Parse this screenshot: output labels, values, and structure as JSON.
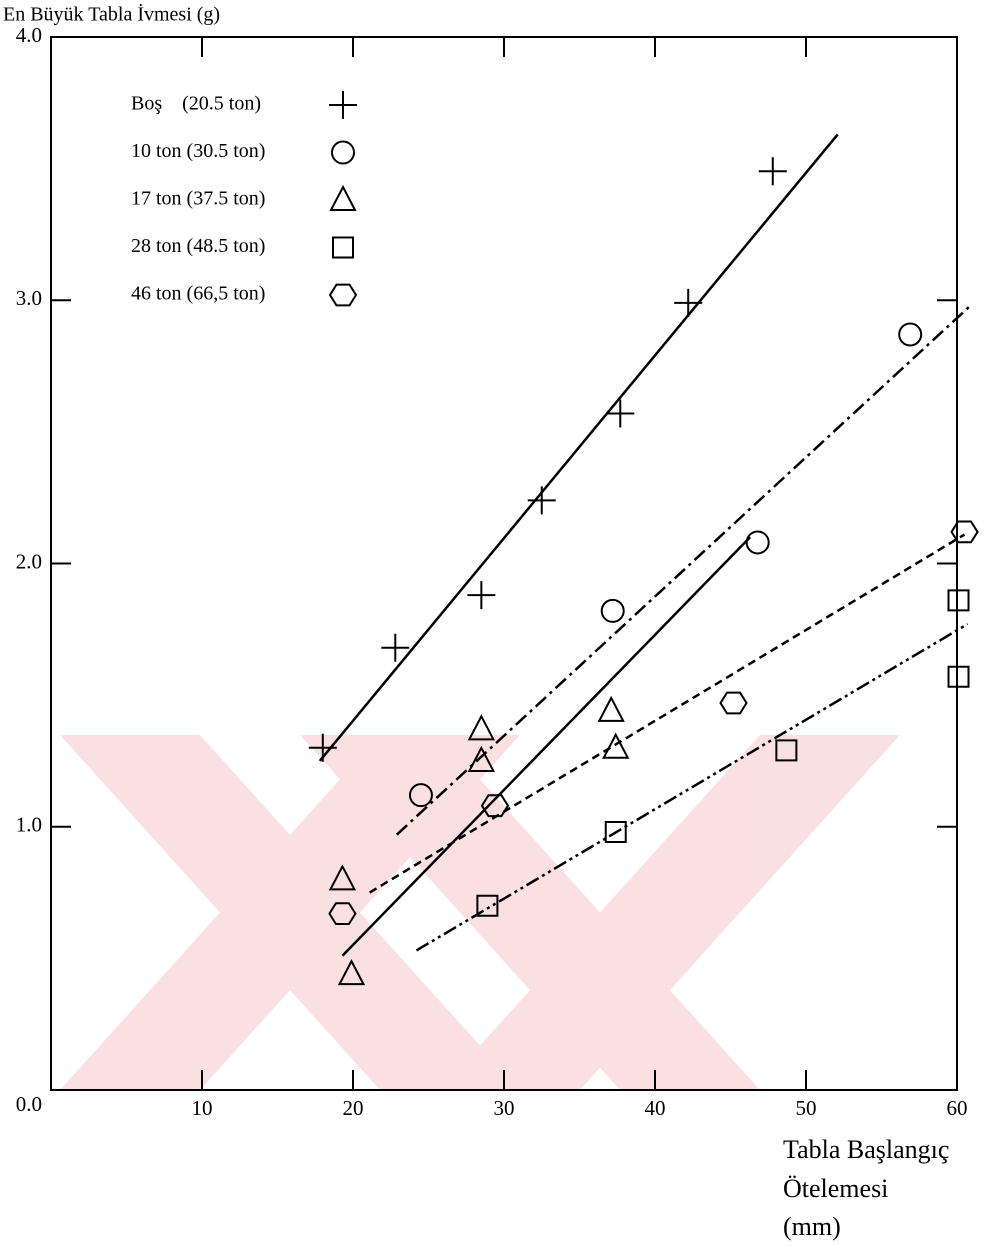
{
  "chart_data": {
    "type": "scatter",
    "ylabel": "En Büyük Tabla İvmesi (g)",
    "xlabel_lines": [
      "Tabla Başlangıç",
      "Ötelemesi",
      "(mm)"
    ],
    "xlim": [
      0,
      60
    ],
    "ylim": [
      0,
      4
    ],
    "xticks": [
      10,
      20,
      30,
      40,
      50,
      60
    ],
    "yticks": [
      {
        "value": 0,
        "label": "0.0"
      },
      {
        "value": 1,
        "label": "1.0"
      },
      {
        "value": 2,
        "label": "2.0"
      },
      {
        "value": 3,
        "label": "3.0"
      },
      {
        "value": 4,
        "label": "4.0"
      }
    ],
    "series": [
      {
        "name": "Boş    (20.5 ton)",
        "marker": "plus",
        "line_style": "solid",
        "x": [
          18.0,
          22.8,
          28.5,
          32.5,
          37.7,
          42.2,
          47.8
        ],
        "values": [
          1.3,
          1.68,
          1.88,
          2.24,
          2.57,
          2.99,
          3.49
        ],
        "fit_x": [
          17.8,
          52.1
        ],
        "fit_y": [
          1.25,
          3.63
        ]
      },
      {
        "name": "10 ton (30.5 ton)",
        "marker": "circle",
        "line_style": "dashdot",
        "x": [
          24.5,
          37.2,
          46.8,
          56.9
        ],
        "values": [
          1.12,
          1.82,
          2.08,
          2.87
        ],
        "fit_x": [
          22.9,
          60.9
        ],
        "fit_y": [
          0.97,
          2.98
        ]
      },
      {
        "name": "17 ton (37.5 ton)",
        "marker": "triangle",
        "line_style": "solid",
        "x": [
          19.9,
          19.3,
          28.5,
          28.5,
          37.1,
          37.4
        ],
        "values": [
          0.44,
          0.8,
          1.37,
          1.25,
          1.44,
          1.3
        ],
        "fit_x": [
          19.3,
          46.3
        ],
        "fit_y": [
          0.51,
          2.1
        ]
      },
      {
        "name": "28 ton (48.5 ton)",
        "marker": "square",
        "line_style": "dashdotdot",
        "x": [
          28.9,
          37.4,
          48.7,
          60.1,
          60.1
        ],
        "values": [
          0.7,
          0.98,
          1.29,
          1.86,
          1.57
        ],
        "fit_x": [
          24.2,
          60.7
        ],
        "fit_y": [
          0.53,
          1.77
        ]
      },
      {
        "name": "46 ton (66,5 ton)",
        "marker": "hexagon",
        "line_style": "dashed",
        "x": [
          19.3,
          29.4,
          45.2,
          60.5
        ],
        "values": [
          0.67,
          1.08,
          1.47,
          2.12
        ],
        "fit_x": [
          21.1,
          60.5
        ],
        "fit_y": [
          0.75,
          2.11
        ]
      }
    ]
  }
}
